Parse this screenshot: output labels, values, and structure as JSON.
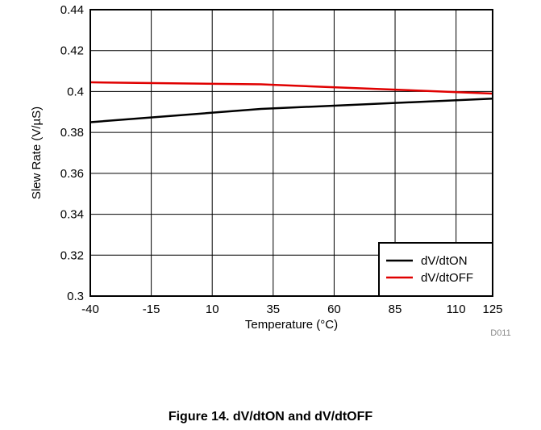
{
  "chart_data": {
    "type": "line",
    "x_ticks": [
      "-40",
      "-15",
      "10",
      "35",
      "60",
      "85",
      "110",
      "125"
    ],
    "y_ticks": [
      "0.44",
      "0.42",
      "0.4",
      "0.38",
      "0.36",
      "0.34",
      "0.32",
      "0.3"
    ],
    "xlabel": "Temperature (°C)",
    "ylabel": "Slew Rate (V/µS)",
    "xlim": [
      -40,
      125
    ],
    "ylim": [
      0.3,
      0.44
    ],
    "grid": true,
    "legend_position": "bottom-right",
    "series": [
      {
        "name": "dV/dtON",
        "color": "#000000",
        "x": [
          -40,
          30,
          125
        ],
        "y": [
          0.385,
          0.3915,
          0.3965
        ]
      },
      {
        "name": "dV/dtOFF",
        "color": "#e00000",
        "x": [
          -40,
          30,
          125
        ],
        "y": [
          0.4045,
          0.4035,
          0.399
        ]
      }
    ]
  },
  "figure_code": "D011",
  "caption": "Figure 14. dV/dtON and dV/dtOFF"
}
